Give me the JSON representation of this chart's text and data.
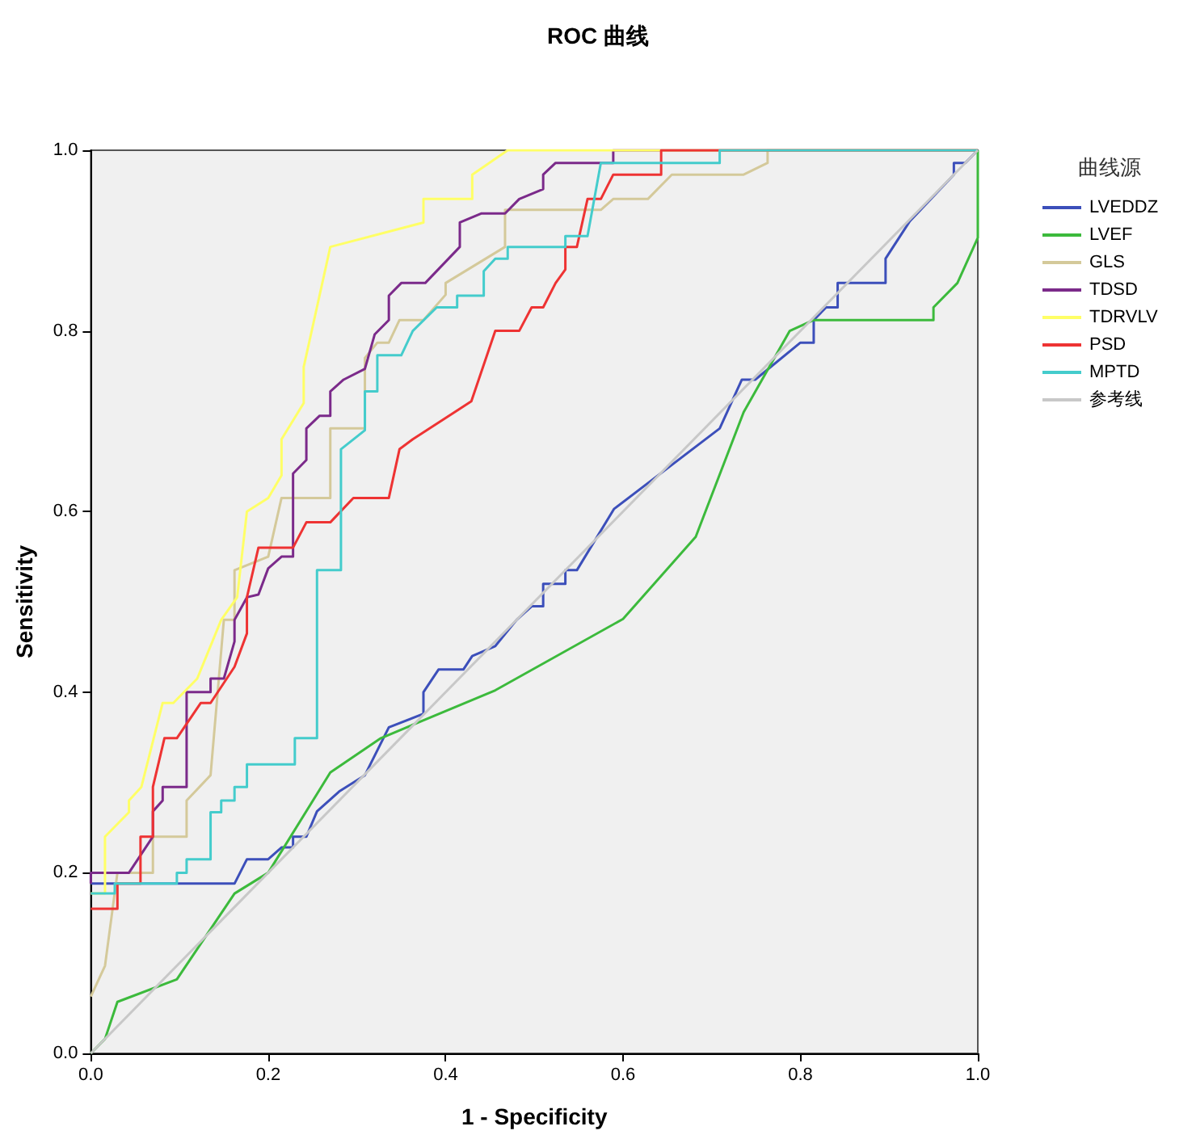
{
  "chart_data": {
    "type": "line",
    "title": "ROC 曲线",
    "xlabel": "1 - Specificity",
    "ylabel": "Sensitivity",
    "legend_title": "曲线源",
    "legend": "right",
    "grid": false,
    "marker": "none",
    "line_style": "solid",
    "xlim": [
      0,
      1
    ],
    "ylim": [
      0,
      1
    ],
    "xticks": [
      {
        "value": 0,
        "label": "0.0"
      },
      {
        "value": 0.2,
        "label": "0.2"
      },
      {
        "value": 0.4,
        "label": "0.4"
      },
      {
        "value": 0.6,
        "label": "0.6"
      },
      {
        "value": 0.8,
        "label": "0.8"
      },
      {
        "value": 1,
        "label": "1.0"
      }
    ],
    "yticks": [
      {
        "value": 0,
        "label": "0.0"
      },
      {
        "value": 0.2,
        "label": "0.2"
      },
      {
        "value": 0.4,
        "label": "0.4"
      },
      {
        "value": 0.6,
        "label": "0.6"
      },
      {
        "value": 0.8,
        "label": "0.8"
      },
      {
        "value": 1,
        "label": "1.0"
      }
    ],
    "series": [
      {
        "name": "LVEDDZ",
        "color": "#3c4fba",
        "x": [
          0,
          0.162,
          0.176,
          0.2,
          0.215,
          0.228,
          0.228,
          0.243,
          0.255,
          0.28,
          0.309,
          0.336,
          0.375,
          0.375,
          0.392,
          0.42,
          0.43,
          0.456,
          0.48,
          0.497,
          0.51,
          0.51,
          0.535,
          0.535,
          0.548,
          0.59,
          0.709,
          0.734,
          0.749,
          0.8,
          0.815,
          0.815,
          0.829,
          0.842,
          0.842,
          0.896,
          0.896,
          0.923,
          0.973,
          0.973,
          0.986,
          1
        ],
        "values": [
          0.188,
          0.188,
          0.215,
          0.215,
          0.228,
          0.228,
          0.24,
          0.24,
          0.268,
          0.29,
          0.308,
          0.361,
          0.376,
          0.4,
          0.425,
          0.425,
          0.44,
          0.451,
          0.48,
          0.495,
          0.495,
          0.52,
          0.52,
          0.535,
          0.535,
          0.603,
          0.692,
          0.746,
          0.746,
          0.787,
          0.787,
          0.812,
          0.826,
          0.826,
          0.853,
          0.853,
          0.88,
          0.921,
          0.973,
          0.986,
          0.986,
          1
        ]
      },
      {
        "name": "LVEF",
        "color": "#3cba3c",
        "x": [
          0,
          0.016,
          0.03,
          0.097,
          0.162,
          0.2,
          0.27,
          0.327,
          0.456,
          0.6,
          0.682,
          0.736,
          0.788,
          0.815,
          0.95,
          0.95,
          0.977,
          1,
          1
        ],
        "values": [
          0,
          0.016,
          0.057,
          0.082,
          0.177,
          0.2,
          0.311,
          0.349,
          0.402,
          0.481,
          0.572,
          0.71,
          0.8,
          0.812,
          0.812,
          0.826,
          0.853,
          0.903,
          1
        ]
      },
      {
        "name": "GLS",
        "color": "#d4c99a",
        "x": [
          0,
          0.016,
          0.03,
          0.07,
          0.07,
          0.108,
          0.108,
          0.135,
          0.15,
          0.162,
          0.162,
          0.2,
          0.215,
          0.27,
          0.27,
          0.309,
          0.309,
          0.323,
          0.336,
          0.348,
          0.375,
          0.4,
          0.4,
          0.467,
          0.467,
          0.575,
          0.589,
          0.628,
          0.655,
          0.736,
          0.763,
          0.763,
          1
        ],
        "values": [
          0.063,
          0.097,
          0.2,
          0.2,
          0.24,
          0.24,
          0.28,
          0.308,
          0.48,
          0.48,
          0.535,
          0.55,
          0.615,
          0.615,
          0.692,
          0.692,
          0.77,
          0.787,
          0.787,
          0.812,
          0.812,
          0.84,
          0.853,
          0.893,
          0.934,
          0.934,
          0.946,
          0.946,
          0.973,
          0.973,
          0.986,
          1,
          1
        ]
      },
      {
        "name": "TDSD",
        "color": "#7b2a8a",
        "x": [
          0,
          0,
          0.043,
          0.07,
          0.07,
          0.081,
          0.081,
          0.108,
          0.108,
          0.135,
          0.135,
          0.15,
          0.162,
          0.162,
          0.176,
          0.189,
          0.2,
          0.215,
          0.228,
          0.228,
          0.243,
          0.243,
          0.258,
          0.27,
          0.27,
          0.285,
          0.309,
          0.32,
          0.336,
          0.336,
          0.35,
          0.377,
          0.416,
          0.416,
          0.44,
          0.467,
          0.483,
          0.51,
          0.51,
          0.524,
          0.589,
          0.589,
          1
        ],
        "values": [
          0.188,
          0.2,
          0.2,
          0.24,
          0.268,
          0.28,
          0.295,
          0.295,
          0.4,
          0.4,
          0.415,
          0.415,
          0.456,
          0.48,
          0.505,
          0.508,
          0.537,
          0.55,
          0.55,
          0.642,
          0.657,
          0.692,
          0.706,
          0.706,
          0.733,
          0.746,
          0.758,
          0.796,
          0.812,
          0.839,
          0.853,
          0.853,
          0.893,
          0.92,
          0.93,
          0.93,
          0.946,
          0.957,
          0.973,
          0.986,
          0.986,
          1,
          1
        ]
      },
      {
        "name": "TDRVLV",
        "color": "#ffff66",
        "x": [
          0,
          0.016,
          0.016,
          0.043,
          0.043,
          0.057,
          0.081,
          0.093,
          0.12,
          0.147,
          0.165,
          0.176,
          0.2,
          0.215,
          0.215,
          0.24,
          0.24,
          0.27,
          0.375,
          0.375,
          0.43,
          0.43,
          0.47,
          1
        ],
        "values": [
          0.177,
          0.177,
          0.24,
          0.267,
          0.28,
          0.295,
          0.388,
          0.388,
          0.415,
          0.48,
          0.505,
          0.6,
          0.615,
          0.64,
          0.68,
          0.72,
          0.76,
          0.893,
          0.92,
          0.946,
          0.946,
          0.973,
          1,
          1
        ]
      },
      {
        "name": "PSD",
        "color": "#ee3333",
        "x": [
          0,
          0.03,
          0.03,
          0.056,
          0.056,
          0.07,
          0.07,
          0.083,
          0.097,
          0.124,
          0.135,
          0.162,
          0.176,
          0.176,
          0.189,
          0.228,
          0.243,
          0.27,
          0.296,
          0.336,
          0.348,
          0.363,
          0.429,
          0.456,
          0.483,
          0.497,
          0.51,
          0.524,
          0.535,
          0.535,
          0.548,
          0.56,
          0.575,
          0.589,
          0.643,
          0.643,
          1
        ],
        "values": [
          0.16,
          0.16,
          0.188,
          0.188,
          0.24,
          0.24,
          0.295,
          0.349,
          0.349,
          0.388,
          0.388,
          0.428,
          0.465,
          0.505,
          0.56,
          0.56,
          0.588,
          0.588,
          0.615,
          0.615,
          0.669,
          0.68,
          0.722,
          0.8,
          0.8,
          0.826,
          0.826,
          0.853,
          0.868,
          0.893,
          0.893,
          0.946,
          0.946,
          0.973,
          0.973,
          1,
          1
        ]
      },
      {
        "name": "MPTD",
        "color": "#44cccc",
        "x": [
          0,
          0.027,
          0.027,
          0.097,
          0.097,
          0.108,
          0.108,
          0.135,
          0.135,
          0.147,
          0.147,
          0.162,
          0.162,
          0.176,
          0.176,
          0.23,
          0.23,
          0.255,
          0.255,
          0.282,
          0.282,
          0.309,
          0.309,
          0.323,
          0.323,
          0.35,
          0.363,
          0.39,
          0.413,
          0.413,
          0.443,
          0.443,
          0.456,
          0.47,
          0.47,
          0.535,
          0.535,
          0.56,
          0.575,
          0.709,
          0.709,
          1
        ],
        "values": [
          0.177,
          0.177,
          0.188,
          0.188,
          0.2,
          0.2,
          0.215,
          0.215,
          0.267,
          0.267,
          0.28,
          0.28,
          0.295,
          0.295,
          0.32,
          0.32,
          0.349,
          0.349,
          0.535,
          0.535,
          0.669,
          0.69,
          0.733,
          0.733,
          0.773,
          0.773,
          0.8,
          0.826,
          0.826,
          0.839,
          0.839,
          0.866,
          0.88,
          0.88,
          0.893,
          0.893,
          0.905,
          0.905,
          0.986,
          0.986,
          1,
          1
        ]
      },
      {
        "name": "参考线",
        "color": "#c8c8c8",
        "x": [
          0,
          1
        ],
        "values": [
          0,
          1
        ]
      }
    ]
  }
}
